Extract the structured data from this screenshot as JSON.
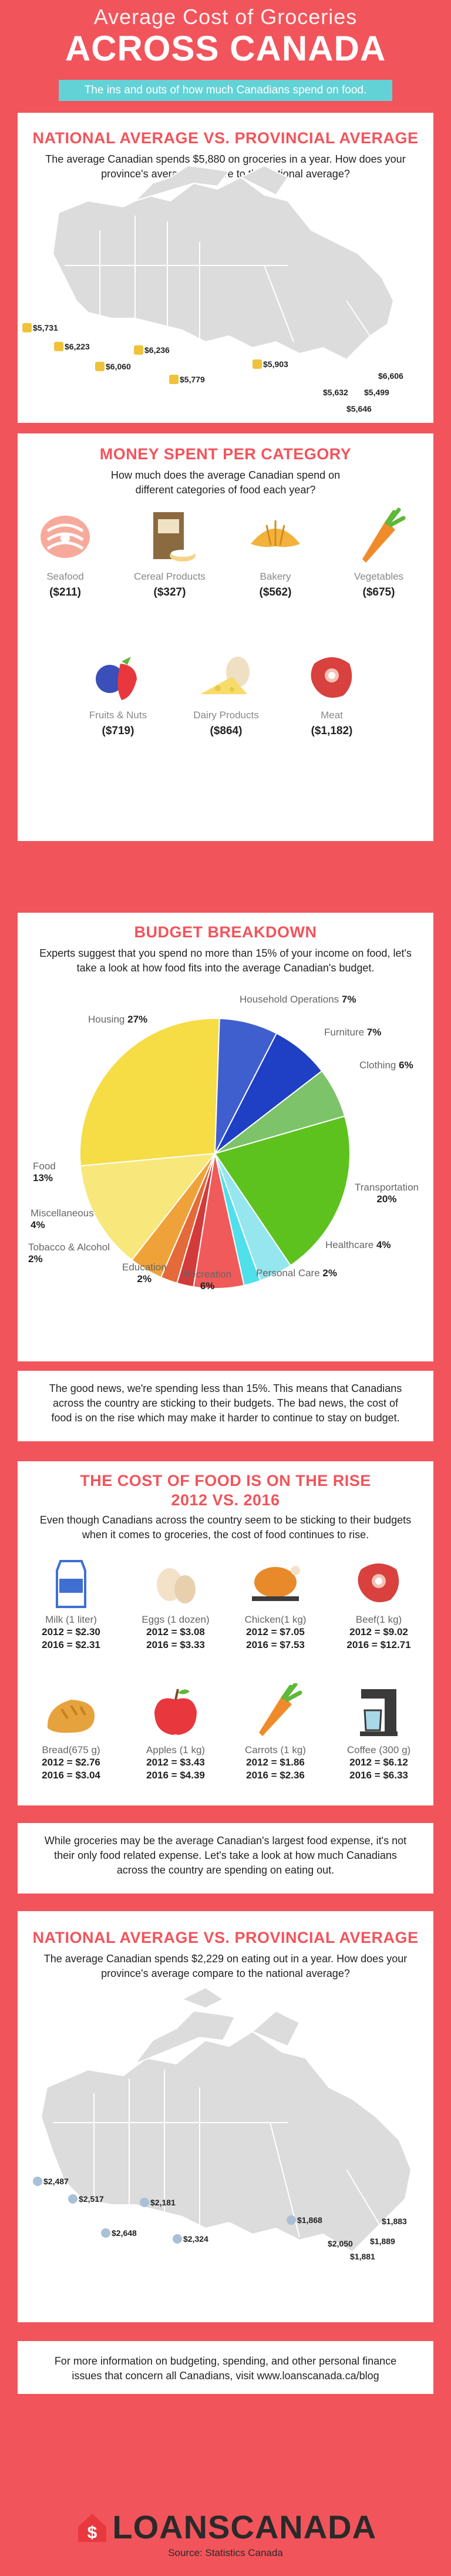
{
  "header": {
    "title_small": "Average Cost of Groceries",
    "title_big": "ACROSS CANADA",
    "subtitle": "The ins and outs of how much Canadians spend on food."
  },
  "section1": {
    "title": "NATIONAL AVERAGE VS. PROVINCIAL AVERAGE",
    "text": "The average Canadian spends $5,880 on groceries in a year. How does your province's average compare to the national average?",
    "provinces": [
      "$5,731",
      "$6,223",
      "$6,060",
      "$6,236",
      "$5,779",
      "$5,903",
      "$6,606",
      "$5,632",
      "$5,499",
      "$5,646"
    ]
  },
  "section2": {
    "title": "MONEY SPENT PER CATEGORY",
    "text": "How much does the average Canadian spend on different categories of food each year?",
    "categories": [
      {
        "label": "Seafood",
        "value": "($211)",
        "icon": "salmon-icon"
      },
      {
        "label": "Cereal Products",
        "value": "($327)",
        "icon": "cereal-box-icon"
      },
      {
        "label": "Bakery",
        "value": "($562)",
        "icon": "croissant-icon"
      },
      {
        "label": "Vegetables",
        "value": "($675)",
        "icon": "carrot-icon"
      },
      {
        "label": "Fruits & Nuts",
        "value": "($719)",
        "icon": "berries-icon"
      },
      {
        "label": "Dairy Products",
        "value": "($864)",
        "icon": "cheese-eggs-icon"
      },
      {
        "label": "Meat",
        "value": "($1,182)",
        "icon": "steak-icon"
      }
    ]
  },
  "section3": {
    "title": "BUDGET BREAKDOWN",
    "text": "Experts suggest that you spend no more than 15% of your income on food, let's take a look at how food fits into the average Canadian's budget.",
    "labels": {
      "housing": "Housing",
      "housing_v": "27%",
      "household": "Household Operations",
      "household_v": "7%",
      "furniture": "Furniture",
      "furniture_v": "7%",
      "clothing": "Clothing",
      "clothing_v": "6%",
      "transport": "Transportation",
      "transport_v": "20%",
      "healthcare": "Healthcare",
      "healthcare_v": "4%",
      "personal": "Personal Care",
      "personal_v": "2%",
      "recreation": "Recreation",
      "recreation_v": "6%",
      "education": "Education",
      "education_v": "2%",
      "tobacco": "Tobacco & Alcohol",
      "tobacco_v": "2%",
      "misc": "Miscellaneous",
      "misc_v": "4%",
      "food": "Food",
      "food_v": "13%"
    }
  },
  "chart_data": {
    "type": "pie",
    "categories": [
      "Housing",
      "Household Operations",
      "Furniture",
      "Clothing",
      "Transportation",
      "Healthcare",
      "Personal Care",
      "Recreation",
      "Education",
      "Tobacco & Alcohol",
      "Miscellaneous",
      "Food"
    ],
    "values": [
      27,
      7,
      7,
      6,
      20,
      4,
      2,
      6,
      2,
      2,
      4,
      13
    ],
    "colors": [
      "#f6dc45",
      "#3f5fcf",
      "#1f3fc4",
      "#7cc36a",
      "#5dc21e",
      "#95e6ee",
      "#4fe0ec",
      "#f05a5a",
      "#d33a3a",
      "#e46a3a",
      "#f0a23a",
      "#f8e77a"
    ]
  },
  "para1": {
    "text": "The good news, we're spending less than 15%. This means that Canadians across the country are sticking to their budgets. The bad news, the cost of food is on the rise which may make it harder to continue to stay on budget."
  },
  "section4": {
    "title": "THE COST OF FOOD IS ON THE RISE",
    "title2": "2012 VS. 2016",
    "text": "Even though Canadians across the country seem to be sticking to their budgets when it comes to groceries, the cost of food continues to rise.",
    "foods": [
      {
        "label": "Milk (1 liter)",
        "y2012": "2012 = $2.30",
        "y2016": "2016 = $2.31",
        "icon": "milk-carton-icon"
      },
      {
        "label": "Eggs (1 dozen)",
        "y2012": "2012 = $3.08",
        "y2016": "2016 = $3.33",
        "icon": "eggs-icon"
      },
      {
        "label": "Chicken(1 kg)",
        "y2012": "2012 = $7.05",
        "y2016": "2016 = $7.53",
        "icon": "roast-chicken-icon"
      },
      {
        "label": "Beef(1 kg)",
        "y2012": "2012 = $9.02",
        "y2016": "2016 = $12.71",
        "icon": "beef-steak-icon"
      },
      {
        "label": "Bread(675 g)",
        "y2012": "2012 = $2.76",
        "y2016": "2016 = $3.04",
        "icon": "bread-icon"
      },
      {
        "label": "Apples (1 kg)",
        "y2012": "2012 = $3.43",
        "y2016": "2016 = $4.39",
        "icon": "apple-icon"
      },
      {
        "label": "Carrots (1 kg)",
        "y2012": "2012 = $1.86",
        "y2016": "2016 = $2.36",
        "icon": "carrot-icon"
      },
      {
        "label": "Coffee (300 g)",
        "y2012": "2012 = $6.12",
        "y2016": "2016 = $6.33",
        "icon": "coffee-maker-icon"
      }
    ]
  },
  "para2": {
    "text": "While groceries may be the average Canadian's largest food expense, it's not their only food related expense. Let's take a look at how much Canadians across the country are spending on eating out."
  },
  "section5": {
    "title": "NATIONAL AVERAGE VS. PROVINCIAL AVERAGE",
    "text": "The average Canadian spends $2,229 on eating out in a year. How does your province's average compare to the national average?",
    "provinces": [
      "$2,487",
      "$2,517",
      "$2,181",
      "$2,648",
      "$2,324",
      "$1,868",
      "$1,883",
      "$2,050",
      "$1,889",
      "$1,881"
    ]
  },
  "para3": {
    "text": "For more information on budgeting, spending, and other personal finance issues that concern all Canadians, visit www.loanscanada.ca/blog"
  },
  "footer": {
    "logo_loans": "LOANS",
    "logo_canada": "CANADA",
    "source": "Source: Statistics Canada"
  }
}
